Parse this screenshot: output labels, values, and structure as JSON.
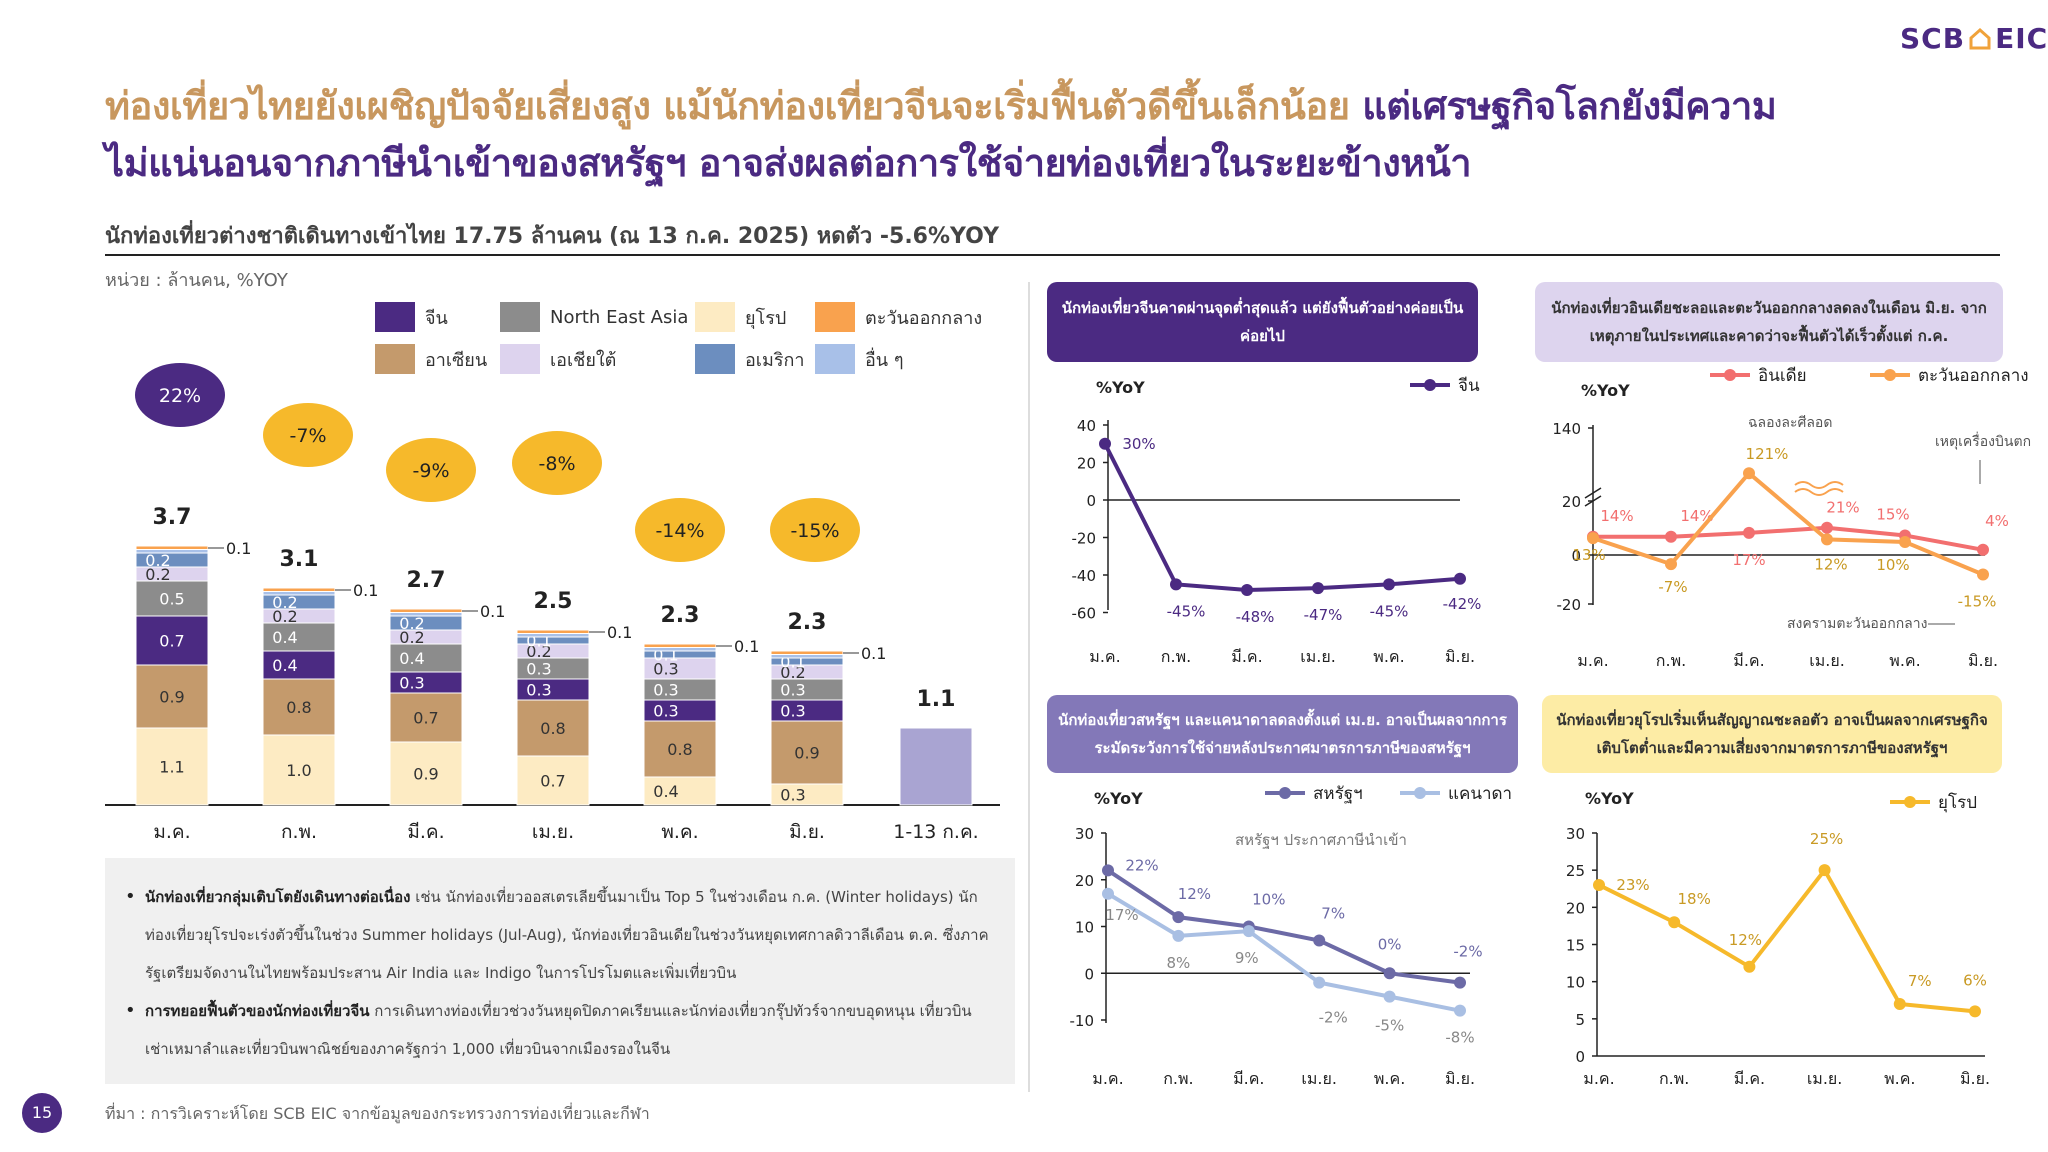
{
  "logo": {
    "text_left": "SCB",
    "text_right": "EIC"
  },
  "title": {
    "line1_part1": "ท่องเที่ยวไทยยังเผชิญปัจจัยเสี่ยงสูง แม้นักท่องเที่ยวจีนจะเริ่มฟื้นตัวดีขึ้นเล็กน้อย",
    "line1_part2": "แต่เศรษฐกิจโลกยังมีความ",
    "line2": "ไม่แน่นอนจากภาษีนำเข้าของสหรัฐฯ อาจส่งผลต่อการใช้จ่ายท่องเที่ยวในระยะข้างหน้า"
  },
  "subtitle": "นักท่องเที่ยวต่างชาติเดินทางเข้าไทย 17.75 ล้านคน (ณ 13 ก.ค. 2025) หดตัว -5.6%YOY",
  "unit_label": "หน่วย : ล้านคน, %YOY",
  "colors": {
    "china": "#4b2a82",
    "asean": "#c49a6c",
    "nea": "#8c8c8c",
    "sa": "#ddd3ee",
    "europe": "#fdebc3",
    "americas": "#6c8ebf",
    "me": "#f9a24e",
    "others": "#a8c0e8",
    "latest": "#a9a4d2",
    "yoy_bubble_pos": "#4b2a82",
    "yoy_bubble_neg": "#f6b92b"
  },
  "legend": [
    {
      "key": "china",
      "label": "จีน"
    },
    {
      "key": "nea",
      "label": "North East Asia"
    },
    {
      "key": "europe",
      "label": "ยุโรป"
    },
    {
      "key": "me",
      "label": "ตะวันออกกลาง"
    },
    {
      "key": "asean",
      "label": "อาเซียน"
    },
    {
      "key": "sa",
      "label": "เอเชียใต้"
    },
    {
      "key": "americas",
      "label": "อเมริกา"
    },
    {
      "key": "others",
      "label": "อื่น ๆ"
    }
  ],
  "chart_data": [
    {
      "id": "arrivals",
      "type": "bar",
      "stacked": true,
      "categories": [
        "ม.ค.",
        "ก.พ.",
        "มี.ค.",
        "เม.ย.",
        "พ.ค.",
        "มิ.ย.",
        "1-13 ก.ค."
      ],
      "series": [
        {
          "name": "ยุโรป",
          "key": "europe",
          "values": [
            1.1,
            1.0,
            0.9,
            0.7,
            0.4,
            0.3,
            null
          ],
          "labels": [
            "1.1",
            "1.0",
            "0.9",
            "0.7",
            "0.4",
            "0.3",
            ""
          ]
        },
        {
          "name": "อาเซียน",
          "key": "asean",
          "values": [
            0.9,
            0.8,
            0.7,
            0.8,
            0.8,
            0.9,
            null
          ],
          "labels": [
            "0.9",
            "0.8",
            "0.7",
            "0.8",
            "0.8",
            "0.9",
            ""
          ]
        },
        {
          "name": "จีน",
          "key": "china",
          "values": [
            0.7,
            0.4,
            0.3,
            0.3,
            0.3,
            0.3,
            null
          ],
          "labels": [
            "0.7",
            "0.4",
            "0.3",
            "0.3",
            "0.3",
            "0.3",
            ""
          ]
        },
        {
          "name": "North East Asia",
          "key": "nea",
          "values": [
            0.5,
            0.4,
            0.4,
            0.3,
            0.3,
            0.3,
            null
          ],
          "labels": [
            "0.5",
            "0.4",
            "0.4",
            "0.3",
            "0.3",
            "0.3",
            ""
          ]
        },
        {
          "name": "เอเชียใต้",
          "key": "sa",
          "values": [
            0.2,
            0.2,
            0.2,
            0.2,
            0.3,
            0.2,
            null
          ],
          "labels": [
            "0.2",
            "0.2",
            "0.2",
            "0.2",
            "0.3",
            "0.2",
            ""
          ]
        },
        {
          "name": "อเมริกา",
          "key": "americas",
          "values": [
            0.2,
            0.2,
            0.2,
            0.1,
            0.1,
            0.1,
            null
          ],
          "labels": [
            "0.2",
            "0.2",
            "0.2",
            "0.1",
            "0.1",
            "0.1",
            ""
          ]
        },
        {
          "name": "อื่น ๆ",
          "key": "others",
          "values": [
            0.05,
            0.05,
            0.05,
            0.05,
            0.05,
            0.05,
            null
          ],
          "labels": [
            "",
            "",
            "",
            "",
            "",
            "",
            ""
          ]
        },
        {
          "name": "ตะวันออกกลาง",
          "key": "me",
          "values": [
            0.05,
            0.05,
            0.05,
            0.05,
            0.05,
            0.05,
            null
          ],
          "labels": [
            "0.1",
            "0.1",
            "0.1",
            "0.1",
            "0.1",
            "0.1",
            ""
          ]
        },
        {
          "name": "1-13 ก.ค.",
          "key": "latest",
          "values": [
            null,
            null,
            null,
            null,
            null,
            null,
            1.1
          ],
          "labels": [
            "",
            "",
            "",
            "",
            "",
            "",
            ""
          ]
        }
      ],
      "totals": [
        "3.7",
        "3.1",
        "2.7",
        "2.5",
        "2.3",
        "2.3",
        "1.1"
      ],
      "yoy_bubbles": [
        "22%",
        "-7%",
        "-9%",
        "-8%",
        "-14%",
        "-15%"
      ],
      "ylim": [
        0,
        4.2
      ]
    },
    {
      "id": "china_yoy",
      "type": "line",
      "title": "นักท่องเที่ยวจีนคาดผ่านจุดต่ำสุดแล้ว แต่ยังฟื้นตัวอย่างค่อยเป็นค่อยไป",
      "ylabel": "%YoY",
      "categories": [
        "ม.ค.",
        "ก.พ.",
        "มี.ค.",
        "เม.ย.",
        "พ.ค.",
        "มิ.ย."
      ],
      "yticks": [
        40,
        20,
        0,
        -20,
        -40,
        -60
      ],
      "ylim": [
        -60,
        40
      ],
      "series": [
        {
          "name": "จีน",
          "color": "#4b2a82",
          "values": [
            30,
            -45,
            -48,
            -47,
            -45,
            -42
          ],
          "labels": [
            "30%",
            "-45%",
            "-48%",
            "-47%",
            "-45%",
            "-42%"
          ]
        }
      ]
    },
    {
      "id": "india_me_yoy",
      "type": "line",
      "title": "นักท่องเที่ยวอินเดียชะลอและตะวันออกกลางลดลงในเดือน มิ.ย. จากเหตุภายในประเทศและคาดว่าจะฟื้นตัวได้เร็วตั้งแต่ ก.ค.",
      "ylabel": "%YoY",
      "categories": [
        "ม.ค.",
        "ก.พ.",
        "มี.ค.",
        "เม.ย.",
        "พ.ค.",
        "มิ.ย."
      ],
      "yticks": [
        140,
        20,
        0,
        -20
      ],
      "axis_break": true,
      "series": [
        {
          "name": "อินเดีย",
          "color": "#f26f6f",
          "values": [
            14,
            14,
            17,
            21,
            15,
            4
          ],
          "labels": [
            "14%",
            "14%",
            "17%",
            "21%",
            "15%",
            "4%"
          ]
        },
        {
          "name": "ตะวันออกกลาง",
          "color": "#f9a24e",
          "values": [
            13,
            -7,
            121,
            12,
            10,
            -15
          ],
          "labels": [
            "13%",
            "-7%",
            "121%",
            "12%",
            "10%",
            "-15%"
          ]
        }
      ],
      "annotations": [
        "ฉลองละศีลอด",
        "เหตุเครื่องบินตก",
        "สงครามตะวันออกกลาง"
      ]
    },
    {
      "id": "us_ca_yoy",
      "type": "line",
      "title": "นักท่องเที่ยวสหรัฐฯ และแคนาดาลดลงตั้งแต่ เม.ย. อาจเป็นผลจากการระมัดระวังการใช้จ่ายหลังประกาศมาตรการภาษีของสหรัฐฯ",
      "ylabel": "%YoY",
      "categories": [
        "ม.ค.",
        "ก.พ.",
        "มี.ค.",
        "เม.ย.",
        "พ.ค.",
        "มิ.ย."
      ],
      "yticks": [
        30,
        20,
        10,
        0,
        -10
      ],
      "ylim": [
        -10,
        30
      ],
      "series": [
        {
          "name": "สหรัฐฯ",
          "color": "#6c6aa6",
          "values": [
            22,
            12,
            10,
            7,
            0,
            -2
          ],
          "labels": [
            "22%",
            "12%",
            "10%",
            "7%",
            "0%",
            "-2%"
          ]
        },
        {
          "name": "แคนาดา",
          "color": "#a9bfe3",
          "values": [
            17,
            8,
            9,
            -2,
            -5,
            -8
          ],
          "labels": [
            "17%",
            "8%",
            "9%",
            "-2%",
            "-5%",
            "-8%"
          ]
        }
      ],
      "annotations": [
        "สหรัฐฯ ประกาศภาษีนำเข้า"
      ]
    },
    {
      "id": "europe_yoy",
      "type": "line",
      "title": "นักท่องเที่ยวยุโรปเริ่มเห็นสัญญาณชะลอตัว อาจเป็นผลจากเศรษฐกิจเติบโตต่ำและมีความเสี่ยงจากมาตรการภาษีของสหรัฐฯ",
      "ylabel": "%YoY",
      "categories": [
        "ม.ค.",
        "ก.พ.",
        "มี.ค.",
        "เม.ย.",
        "พ.ค.",
        "มิ.ย."
      ],
      "yticks": [
        30,
        25,
        20,
        15,
        10,
        5,
        0
      ],
      "ylim": [
        0,
        30
      ],
      "series": [
        {
          "name": "ยุโรป",
          "color": "#f6b92b",
          "values": [
            23,
            18,
            12,
            25,
            7,
            6
          ],
          "labels": [
            "23%",
            "18%",
            "12%",
            "25%",
            "7%",
            "6%"
          ]
        }
      ]
    }
  ],
  "bullets": [
    {
      "bold": "นักท่องเที่ยวกลุ่มเติบโตยังเดินทางต่อเนื่อง",
      "text": " เช่น นักท่องเที่ยวออสเตรเลียขึ้นมาเป็น Top 5 ในช่วงเดือน ก.ค. (Winter holidays) นักท่องเที่ยวยุโรปจะเร่งตัวขึ้นในช่วง Summer holidays (Jul-Aug), นักท่องเที่ยวอินเดียในช่วงวันหยุดเทศกาลดิวาลีเดือน ต.ค. ซึ่งภาครัฐเตรียมจัดงานในไทยพร้อมประสาน Air India และ Indigo ในการโปรโมตและเพิ่มเที่ยวบิน"
    },
    {
      "bold": "การทยอยฟื้นตัวของนักท่องเที่ยวจีน",
      "text": " การเดินทางท่องเที่ยวช่วงวันหยุดปิดภาคเรียนและนักท่องเที่ยวกรุ๊ปทัวร์จากขบอุดหนุน เที่ยวบินเช่าเหมาลำและเที่ยวบินพาณิชย์ของภาครัฐกว่า 1,000 เที่ยวบินจากเมืองรองในจีน"
    }
  ],
  "page_number": "15",
  "source": "ที่มา : การวิเคราะห์โดย SCB EIC จากข้อมูลของกระทรวงการท่องเที่ยวและกีฬา"
}
